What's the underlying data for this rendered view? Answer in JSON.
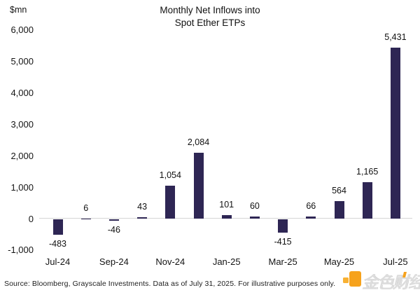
{
  "title": {
    "line1": "Monthly Net Inflows into",
    "line2": "Spot Ether ETPs"
  },
  "chart_data": {
    "type": "bar",
    "title": "Monthly Net Inflows into Spot Ether ETPs",
    "unit": "$mn",
    "categories": [
      "Jul-24",
      "Aug-24",
      "Sep-24",
      "Oct-24",
      "Nov-24",
      "Dec-24",
      "Jan-25",
      "Feb-25",
      "Mar-25",
      "Apr-25",
      "May-25",
      "Jun-25",
      "Jul-25"
    ],
    "values": [
      -483,
      6,
      -46,
      43,
      1054,
      2084,
      101,
      60,
      -415,
      66,
      564,
      1165,
      5431
    ],
    "value_labels": [
      "-483",
      "6",
      "-46",
      "43",
      "1,054",
      "2,084",
      "101",
      "60",
      "-415",
      "66",
      "564",
      "1,165",
      "5,431"
    ],
    "x_tick_labels": [
      "Jul-24",
      "Sep-24",
      "Nov-24",
      "Jan-25",
      "Mar-25",
      "May-25",
      "Jul-25"
    ],
    "y_ticks": [
      {
        "value": 6000,
        "label": "6,000"
      },
      {
        "value": 5000,
        "label": "5,000"
      },
      {
        "value": 4000,
        "label": "4,000"
      },
      {
        "value": 3000,
        "label": "3,000"
      },
      {
        "value": 2000,
        "label": "2,000"
      },
      {
        "value": 1000,
        "label": "1,000"
      },
      {
        "value": 0,
        "label": "0"
      },
      {
        "value": -1000,
        "label": "-1,000"
      }
    ],
    "ylim": [
      -1000,
      6000
    ],
    "bar_color": "#2e2654",
    "grid": false,
    "legend": false
  },
  "footer": {
    "source": "Source: Bloomberg, Grayscale Investments. Data as of July 31, 2025. For illustrative purposes only."
  },
  "watermark": {
    "text": "金色财经",
    "logo_color_big": "#F6A21C",
    "logo_color_small": "#F8B133"
  }
}
